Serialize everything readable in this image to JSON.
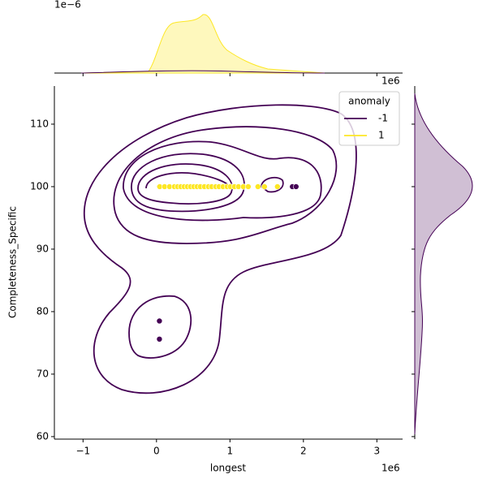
{
  "chart_data": {
    "type": "scatter",
    "x_label": "longest",
    "y_label": "Completeness_Specific",
    "x_offset": "1e6",
    "marginal_offset": "1e−6",
    "xlim": [
      -1390000,
      3350000
    ],
    "xticks": [
      {
        "value": -1000000,
        "label": "−1"
      },
      {
        "value": 0,
        "label": "0"
      },
      {
        "value": 1000000,
        "label": "1"
      },
      {
        "value": 2000000,
        "label": "2"
      },
      {
        "value": 3000000,
        "label": "3"
      }
    ],
    "ylim": [
      59.6,
      116.1
    ],
    "yticks": [
      60,
      70,
      80,
      90,
      100,
      110
    ],
    "legend": {
      "title": "anomaly",
      "position": "upper right"
    },
    "series": [
      {
        "name": "-1",
        "color": "#440154",
        "x": [
          40000,
          700000,
          1850000,
          1900000,
          40000,
          40000
        ],
        "values": [
          100,
          100,
          100,
          100,
          78.5,
          75.6
        ]
      },
      {
        "name": "1",
        "color": "#fde725",
        "x": [
          44000,
          110000,
          177000,
          243000,
          287000,
          331000,
          376000,
          420000,
          464000,
          508000,
          552000,
          597000,
          652000,
          707000,
          751000,
          807000,
          851000,
          906000,
          961000,
          1006000,
          1061000,
          1116000,
          1182000,
          1249000,
          1381000,
          1470000,
          1646000
        ],
        "values": [
          100,
          100,
          100,
          100,
          100,
          100,
          100,
          100,
          100,
          100,
          100,
          100,
          100,
          100,
          100,
          100,
          100,
          100,
          100,
          100,
          100,
          100,
          100,
          100,
          100,
          100,
          100
        ]
      }
    ]
  }
}
